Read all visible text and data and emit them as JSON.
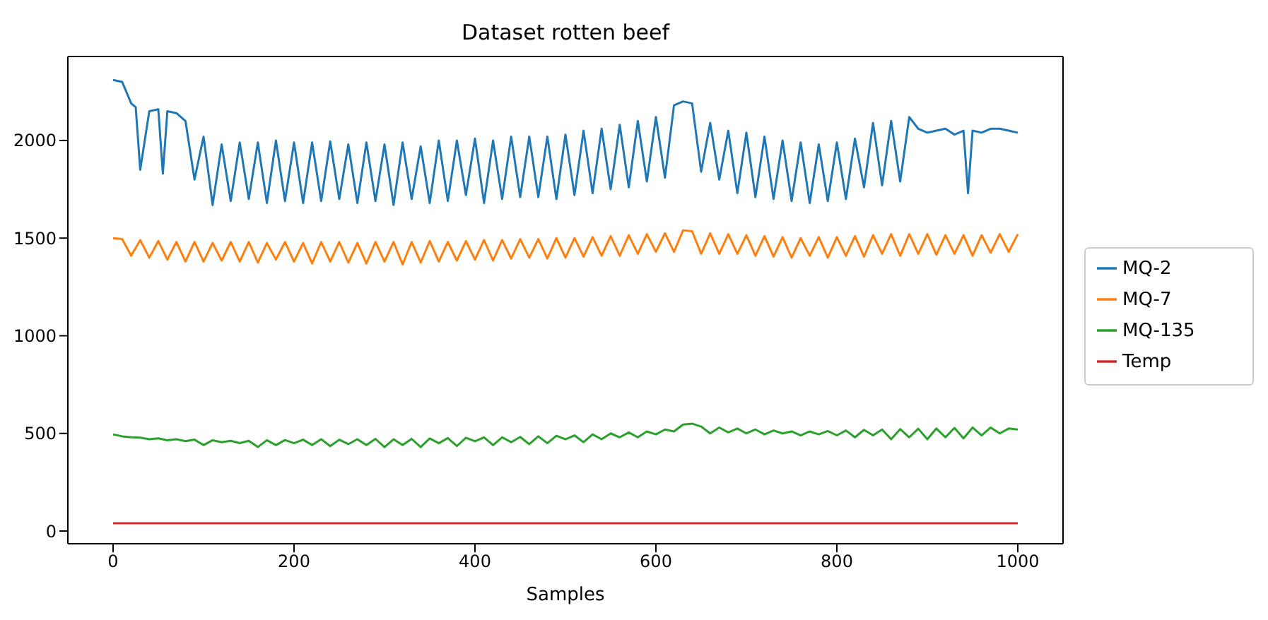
{
  "chart_data": {
    "type": "line",
    "title": "Dataset rotten beef",
    "xlabel": "Samples",
    "xlim": [
      -50,
      1050
    ],
    "xticks": [
      0,
      200,
      400,
      600,
      800,
      1000
    ],
    "ylim": [
      -65,
      2430
    ],
    "yticks": [
      0,
      500,
      1000,
      1500,
      2000
    ],
    "grid": false,
    "legend": "right",
    "line_style": "solid",
    "series": [
      {
        "name": "MQ-2",
        "color": "#1f77b4",
        "x": [
          0,
          10,
          20,
          25,
          30,
          40,
          50,
          55,
          60,
          70,
          80,
          90,
          100,
          110,
          120,
          130,
          140,
          150,
          160,
          170,
          180,
          190,
          200,
          210,
          220,
          230,
          240,
          250,
          260,
          270,
          280,
          290,
          300,
          310,
          320,
          330,
          340,
          350,
          360,
          370,
          380,
          390,
          400,
          410,
          420,
          430,
          440,
          450,
          460,
          470,
          480,
          490,
          500,
          510,
          520,
          530,
          540,
          550,
          560,
          570,
          580,
          590,
          600,
          610,
          620,
          630,
          640,
          650,
          660,
          670,
          680,
          690,
          700,
          710,
          720,
          730,
          740,
          750,
          760,
          770,
          780,
          790,
          800,
          810,
          820,
          830,
          840,
          850,
          860,
          870,
          880,
          890,
          900,
          910,
          920,
          930,
          940,
          945,
          950,
          960,
          970,
          980,
          990,
          1000
        ],
        "values": [
          2310,
          2300,
          2190,
          2170,
          1850,
          2150,
          2160,
          1830,
          2150,
          2140,
          2100,
          1800,
          2020,
          1670,
          1980,
          1690,
          1990,
          1700,
          1990,
          1680,
          2000,
          1690,
          1990,
          1680,
          1990,
          1690,
          1995,
          1700,
          1980,
          1680,
          1990,
          1690,
          1980,
          1670,
          1990,
          1700,
          1970,
          1680,
          2000,
          1690,
          2000,
          1720,
          2010,
          1680,
          2000,
          1700,
          2020,
          1710,
          2020,
          1710,
          2020,
          1700,
          2030,
          1720,
          2050,
          1730,
          2060,
          1750,
          2080,
          1760,
          2100,
          1790,
          2120,
          1810,
          2180,
          2200,
          2190,
          1840,
          2090,
          1800,
          2050,
          1730,
          2040,
          1710,
          2020,
          1700,
          2000,
          1690,
          1990,
          1680,
          1980,
          1690,
          1990,
          1700,
          2010,
          1760,
          2090,
          1770,
          2100,
          1790,
          2120,
          2060,
          2040,
          2050,
          2060,
          2030,
          2050,
          1730,
          2050,
          2040,
          2060,
          2060,
          2050,
          2040
        ]
      },
      {
        "name": "MQ-7",
        "color": "#ff7f0e",
        "x": [
          0,
          10,
          20,
          30,
          40,
          50,
          60,
          70,
          80,
          90,
          100,
          110,
          120,
          130,
          140,
          150,
          160,
          170,
          180,
          190,
          200,
          210,
          220,
          230,
          240,
          250,
          260,
          270,
          280,
          290,
          300,
          310,
          320,
          330,
          340,
          350,
          360,
          370,
          380,
          390,
          400,
          410,
          420,
          430,
          440,
          450,
          460,
          470,
          480,
          490,
          500,
          510,
          520,
          530,
          540,
          550,
          560,
          570,
          580,
          590,
          600,
          610,
          620,
          630,
          640,
          650,
          660,
          670,
          680,
          690,
          700,
          710,
          720,
          730,
          740,
          750,
          760,
          770,
          780,
          790,
          800,
          810,
          820,
          830,
          840,
          850,
          860,
          870,
          880,
          890,
          900,
          910,
          920,
          930,
          940,
          950,
          960,
          970,
          980,
          990,
          1000
        ],
        "values": [
          1500,
          1495,
          1410,
          1490,
          1400,
          1485,
          1390,
          1480,
          1380,
          1480,
          1380,
          1475,
          1385,
          1480,
          1380,
          1480,
          1375,
          1475,
          1390,
          1480,
          1380,
          1475,
          1370,
          1480,
          1380,
          1480,
          1375,
          1475,
          1370,
          1480,
          1380,
          1480,
          1365,
          1480,
          1375,
          1485,
          1380,
          1480,
          1385,
          1485,
          1390,
          1490,
          1385,
          1490,
          1395,
          1495,
          1400,
          1495,
          1395,
          1500,
          1400,
          1500,
          1405,
          1505,
          1410,
          1510,
          1410,
          1515,
          1420,
          1520,
          1430,
          1525,
          1430,
          1540,
          1535,
          1420,
          1525,
          1420,
          1520,
          1420,
          1515,
          1410,
          1510,
          1405,
          1505,
          1400,
          1500,
          1410,
          1505,
          1400,
          1505,
          1410,
          1510,
          1405,
          1515,
          1420,
          1520,
          1410,
          1520,
          1420,
          1520,
          1415,
          1515,
          1420,
          1515,
          1410,
          1515,
          1425,
          1520,
          1430,
          1520
        ]
      },
      {
        "name": "MQ-135",
        "color": "#2ca02c",
        "x": [
          0,
          10,
          20,
          30,
          40,
          50,
          60,
          70,
          80,
          90,
          100,
          110,
          120,
          130,
          140,
          150,
          160,
          170,
          180,
          190,
          200,
          210,
          220,
          230,
          240,
          250,
          260,
          270,
          280,
          290,
          300,
          310,
          320,
          330,
          340,
          350,
          360,
          370,
          380,
          390,
          400,
          410,
          420,
          430,
          440,
          450,
          460,
          470,
          480,
          490,
          500,
          510,
          520,
          530,
          540,
          550,
          560,
          570,
          580,
          590,
          600,
          610,
          620,
          630,
          640,
          650,
          660,
          670,
          680,
          690,
          700,
          710,
          720,
          730,
          740,
          750,
          760,
          770,
          780,
          790,
          800,
          810,
          820,
          830,
          840,
          850,
          860,
          870,
          880,
          890,
          900,
          910,
          920,
          930,
          940,
          950,
          960,
          970,
          980,
          990,
          1000
        ],
        "values": [
          495,
          485,
          480,
          478,
          470,
          475,
          465,
          470,
          460,
          468,
          440,
          465,
          455,
          462,
          450,
          462,
          430,
          465,
          440,
          466,
          450,
          468,
          440,
          470,
          435,
          468,
          445,
          470,
          440,
          472,
          430,
          470,
          440,
          472,
          430,
          474,
          450,
          476,
          435,
          478,
          460,
          480,
          440,
          480,
          455,
          482,
          445,
          485,
          450,
          488,
          470,
          490,
          455,
          495,
          470,
          500,
          480,
          505,
          480,
          510,
          495,
          520,
          510,
          545,
          550,
          535,
          500,
          530,
          505,
          525,
          500,
          520,
          495,
          515,
          500,
          510,
          490,
          510,
          495,
          512,
          490,
          515,
          480,
          518,
          490,
          520,
          470,
          522,
          480,
          524,
          470,
          525,
          480,
          528,
          475,
          530,
          490,
          530,
          500,
          525,
          520
        ]
      },
      {
        "name": "Temp",
        "color": "#d62728",
        "x": [
          0,
          100,
          200,
          300,
          400,
          500,
          600,
          700,
          800,
          900,
          1000
        ],
        "values": [
          40,
          40,
          40,
          40,
          40,
          40,
          40,
          40,
          40,
          40,
          40
        ]
      }
    ]
  }
}
